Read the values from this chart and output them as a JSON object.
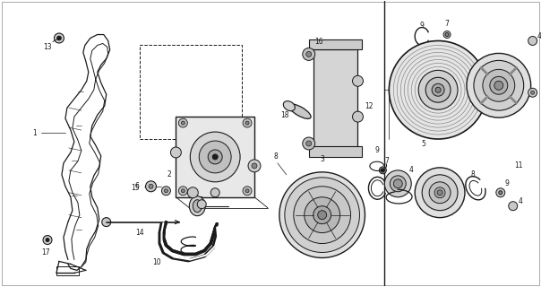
{
  "bg_color": "#ffffff",
  "line_color": "#1a1a1a",
  "fig_width": 6.04,
  "fig_height": 3.2,
  "dpi": 100,
  "border_color": "#333333",
  "gray_fill": "#cccccc",
  "light_gray": "#e8e8e8",
  "med_gray": "#aaaaaa"
}
